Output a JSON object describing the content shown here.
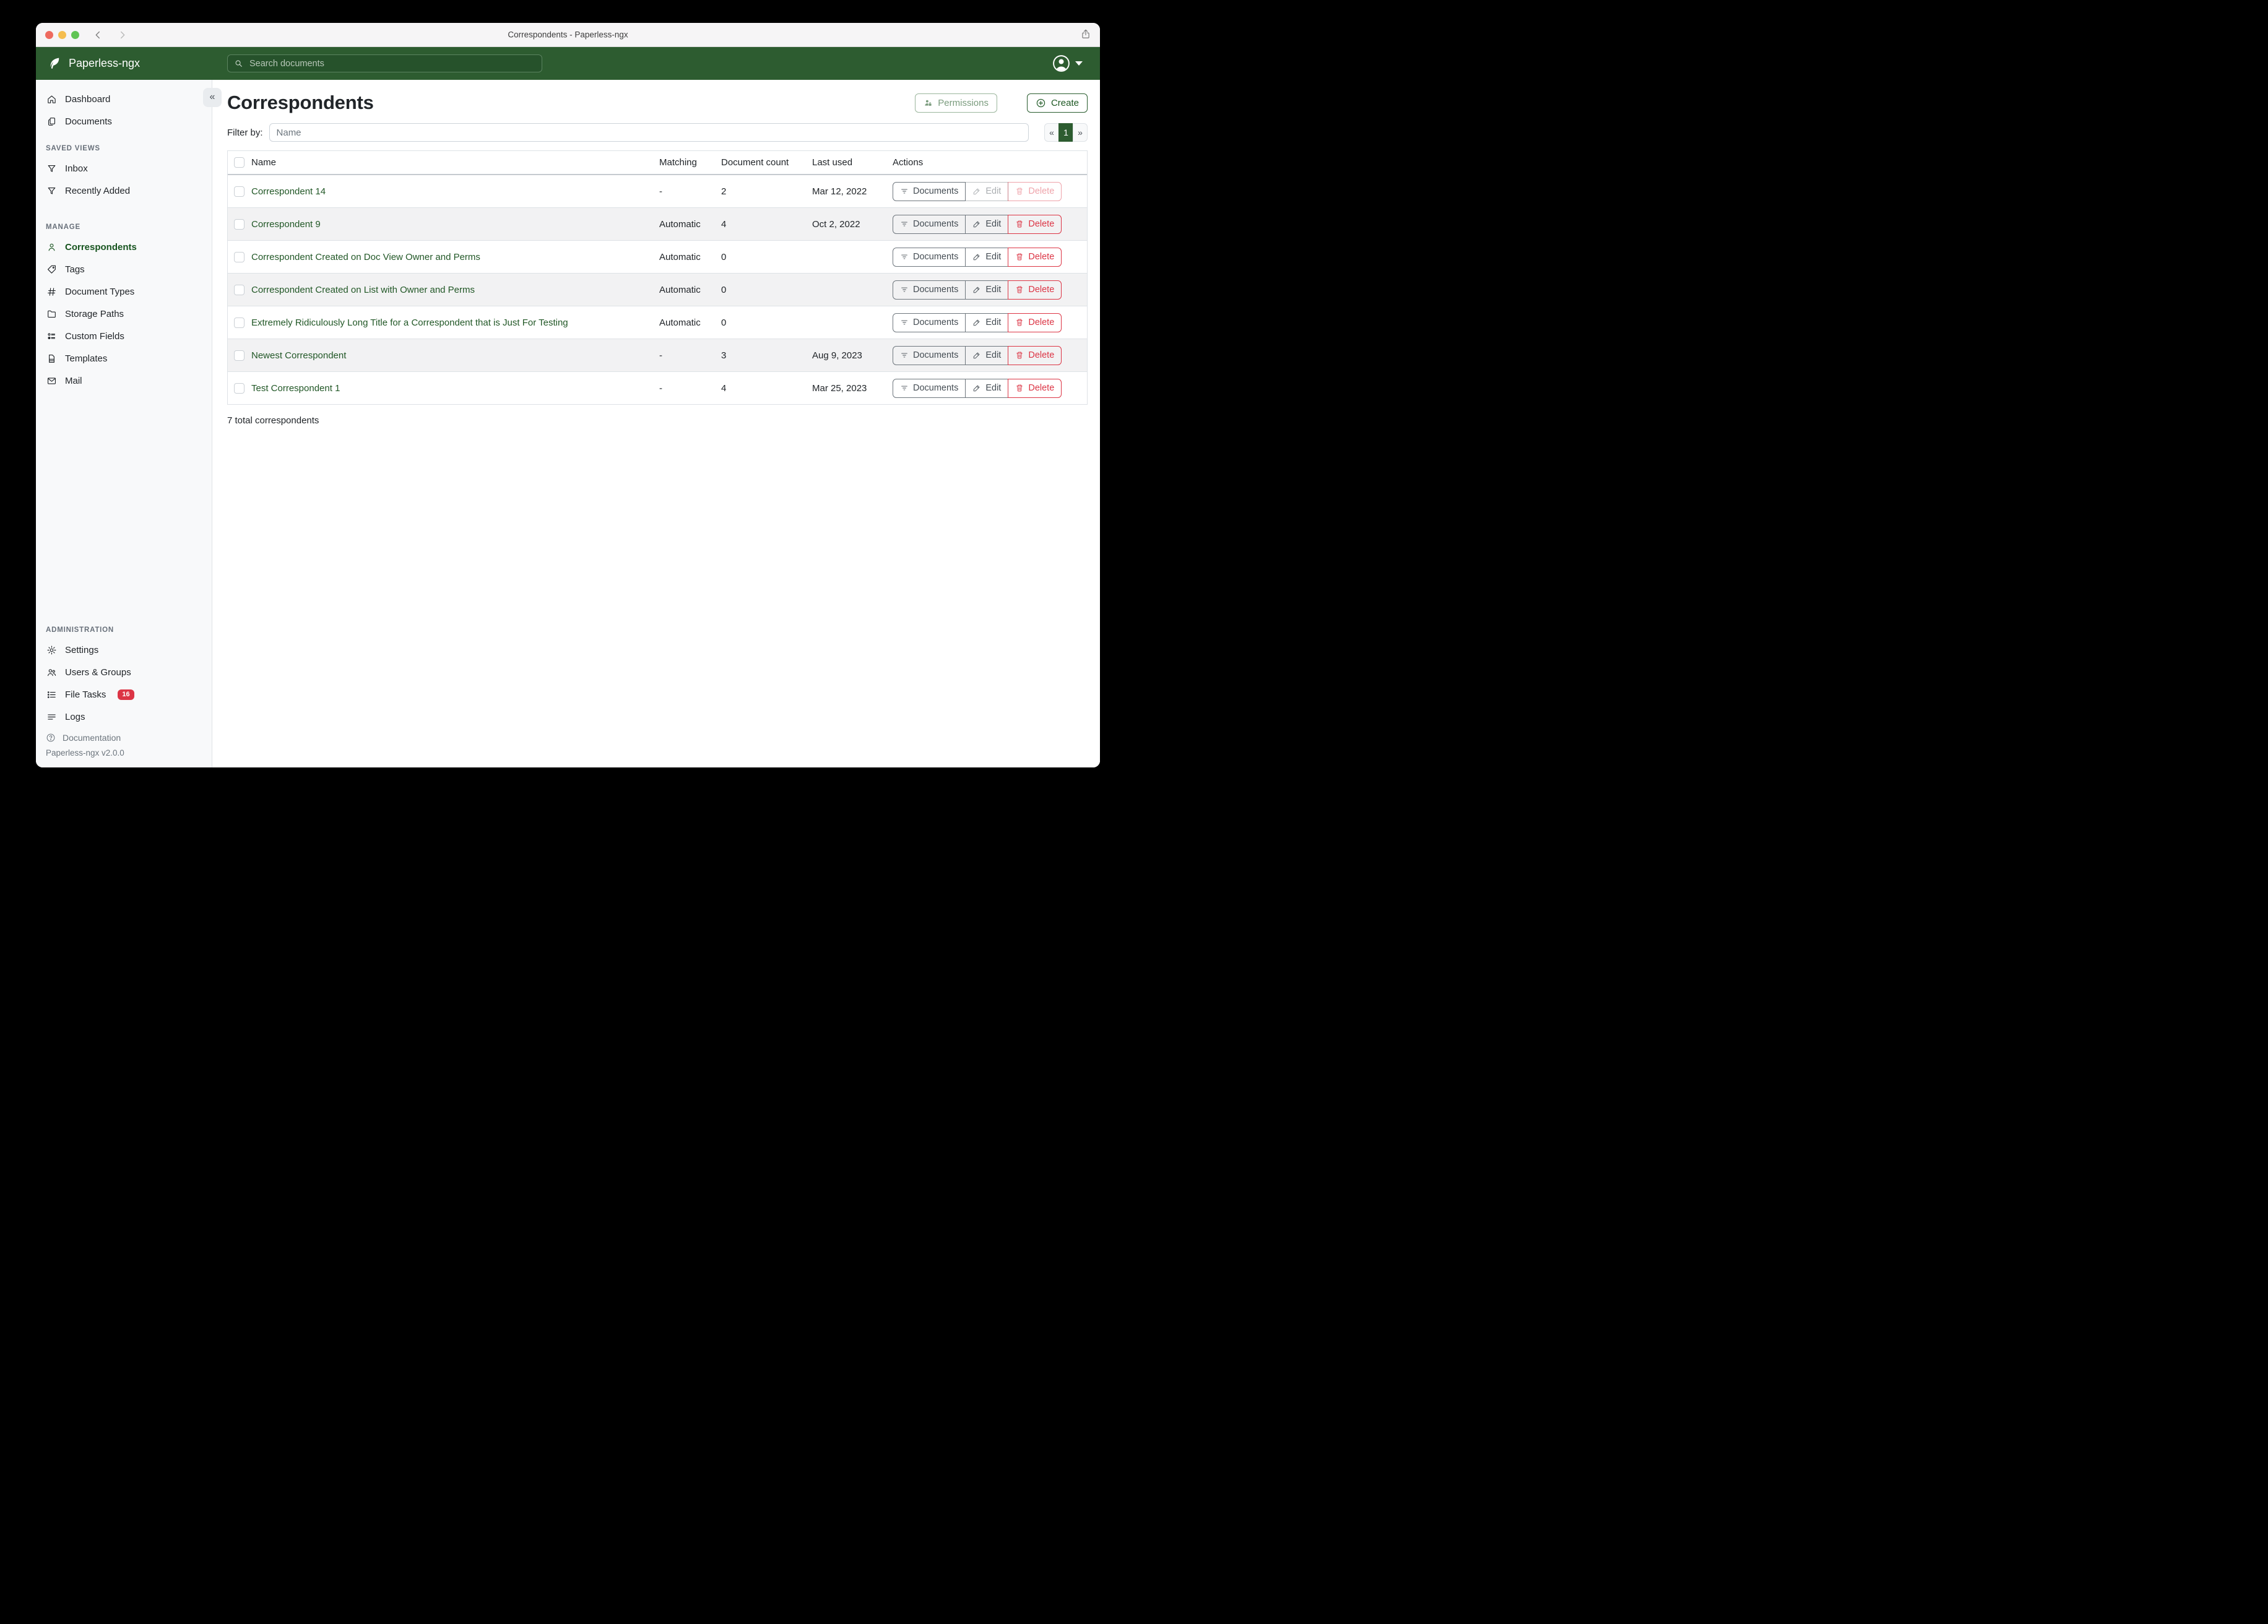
{
  "window": {
    "title": "Correspondents - Paperless-ngx"
  },
  "navbar": {
    "brand": "Paperless-ngx",
    "search_placeholder": "Search documents"
  },
  "sidebar": {
    "collapse_glyph": "«",
    "nav_main": [
      {
        "label": "Dashboard",
        "icon": "home"
      },
      {
        "label": "Documents",
        "icon": "documents"
      },
      {
        "label": "SAVED VIEWS",
        "header": true
      },
      {
        "label": "Inbox",
        "icon": "funnel"
      },
      {
        "label": "Recently Added",
        "icon": "funnel"
      },
      {
        "label": "MANAGE",
        "header": true,
        "gap": true
      },
      {
        "label": "Correspondents",
        "icon": "person",
        "active": true
      },
      {
        "label": "Tags",
        "icon": "tag"
      },
      {
        "label": "Document Types",
        "icon": "hash"
      },
      {
        "label": "Storage Paths",
        "icon": "folder"
      },
      {
        "label": "Custom Fields",
        "icon": "fields"
      },
      {
        "label": "Templates",
        "icon": "file"
      },
      {
        "label": "Mail",
        "icon": "mail"
      }
    ],
    "nav_admin": [
      {
        "label": "ADMINISTRATION",
        "header": true
      },
      {
        "label": "Settings",
        "icon": "gear"
      },
      {
        "label": "Users & Groups",
        "icon": "users"
      },
      {
        "label": "File Tasks",
        "icon": "tasks",
        "badge": "16"
      },
      {
        "label": "Logs",
        "icon": "logs"
      }
    ],
    "documentation": "Documentation",
    "version": "Paperless-ngx v2.0.0"
  },
  "page": {
    "title": "Correspondents",
    "permissions_label": "Permissions",
    "create_label": "Create",
    "filter_label": "Filter by:",
    "filter_placeholder": "Name",
    "pagination": {
      "prev": "«",
      "current": "1",
      "next": "»"
    },
    "total": "7 total correspondents"
  },
  "table": {
    "headers": {
      "name": "Name",
      "matching": "Matching",
      "count": "Document count",
      "last_used": "Last used",
      "actions": "Actions"
    },
    "action_labels": {
      "documents": "Documents",
      "edit": "Edit",
      "delete": "Delete"
    },
    "rows": [
      {
        "name": "Correspondent 14",
        "matching": "-",
        "count": "2",
        "last_used": "Mar 12, 2022",
        "actions_disabled": true
      },
      {
        "name": "Correspondent 9",
        "matching": "Automatic",
        "count": "4",
        "last_used": "Oct 2, 2022"
      },
      {
        "name": "Correspondent Created on Doc View Owner and Perms",
        "matching": "Automatic",
        "count": "0",
        "last_used": ""
      },
      {
        "name": "Correspondent Created on List with Owner and Perms",
        "matching": "Automatic",
        "count": "0",
        "last_used": ""
      },
      {
        "name": "Extremely Ridiculously Long Title for a Correspondent that is Just For Testing",
        "matching": "Automatic",
        "count": "0",
        "last_used": ""
      },
      {
        "name": "Newest Correspondent",
        "matching": "-",
        "count": "3",
        "last_used": "Aug 9, 2023"
      },
      {
        "name": "Test Correspondent 1",
        "matching": "-",
        "count": "4",
        "last_used": "Mar 25, 2023"
      }
    ]
  },
  "colors": {
    "navbar_green": "#2d5c30",
    "active_green": "#17541f",
    "link_green": "#215726",
    "danger_red": "#dc3545",
    "sidebar_bg": "#f8f9fa",
    "stripe": "#f2f2f3"
  }
}
